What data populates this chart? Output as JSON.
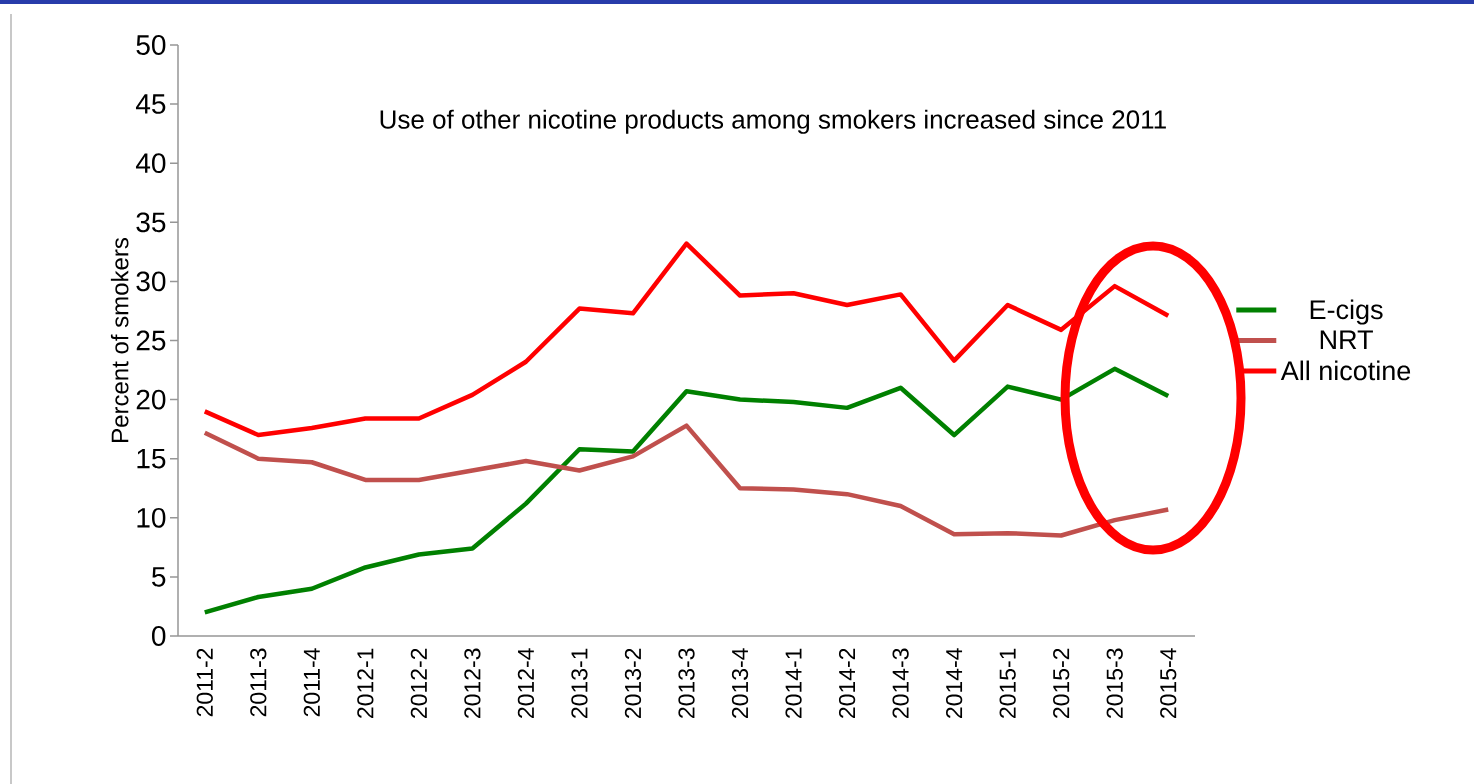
{
  "chart_data": {
    "type": "line",
    "title": "Use of other nicotine products among smokers increased since 2011",
    "ylabel": "Percent of smokers",
    "categories": [
      "2011-2",
      "2011-3",
      "2011-4",
      "2012-1",
      "2012-2",
      "2012-3",
      "2012-4",
      "2013-1",
      "2013-2",
      "2013-3",
      "2013-4",
      "2014-1",
      "2014-2",
      "2014-3",
      "2014-4",
      "2015-1",
      "2015-2",
      "2015-3",
      "2015-4"
    ],
    "series": [
      {
        "name": "E-cigs",
        "color": "#008000",
        "values": [
          2.0,
          3.3,
          4.0,
          5.8,
          6.9,
          7.4,
          11.2,
          15.8,
          15.6,
          20.7,
          20.0,
          19.8,
          19.3,
          21.0,
          17.0,
          21.1,
          20.0,
          22.6,
          20.3
        ]
      },
      {
        "name": "NRT",
        "color": "#c0504d",
        "values": [
          17.2,
          15.0,
          14.7,
          13.2,
          13.2,
          14.0,
          14.8,
          14.0,
          15.2,
          17.8,
          12.5,
          12.4,
          12.0,
          11.0,
          8.6,
          8.7,
          8.5,
          9.8,
          10.7
        ]
      },
      {
        "name": "All nicotine",
        "color": "#ff0000",
        "values": [
          19.0,
          17.0,
          17.6,
          18.4,
          18.4,
          20.4,
          23.2,
          27.7,
          27.3,
          33.2,
          28.8,
          29.0,
          28.0,
          28.9,
          23.3,
          28.0,
          25.9,
          29.6,
          27.1
        ]
      }
    ],
    "ylim": [
      0,
      50
    ],
    "yticks": [
      0,
      5,
      10,
      15,
      20,
      25,
      30,
      35,
      40,
      45,
      50
    ],
    "grid": false,
    "legend": "right",
    "marker": "none",
    "line_style": "solid"
  }
}
